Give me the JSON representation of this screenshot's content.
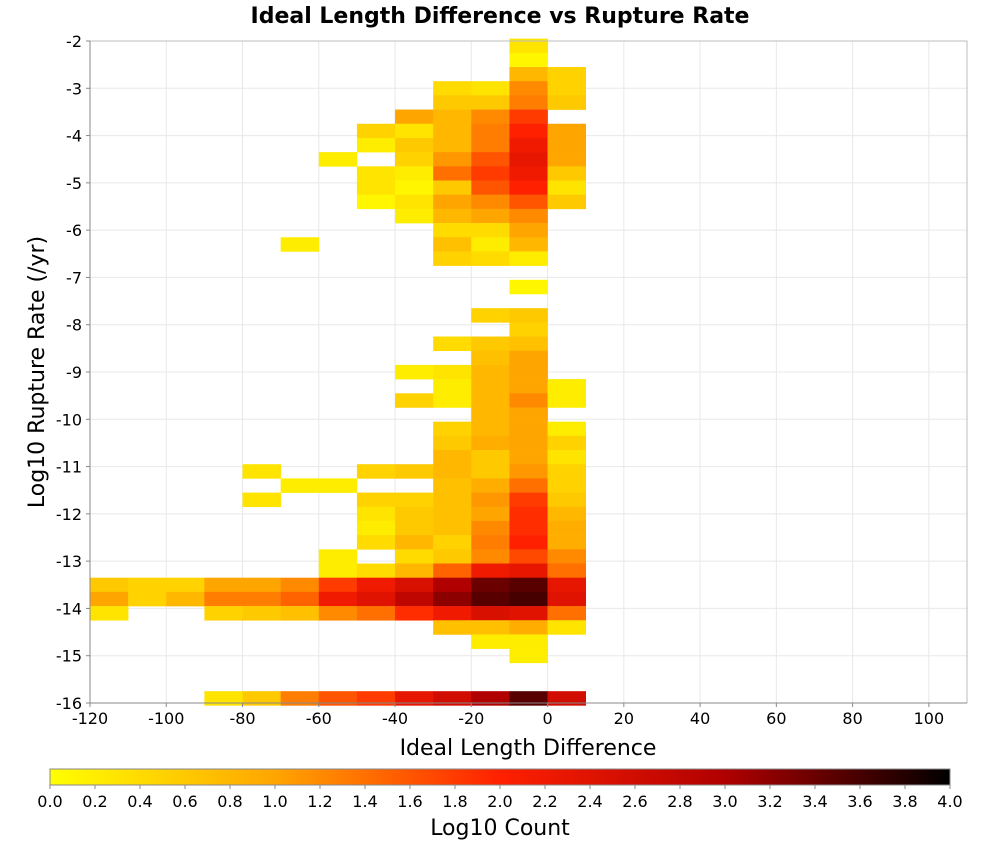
{
  "chart_data": {
    "type": "heatmap",
    "title": "Ideal Length Difference vs Rupture Rate",
    "xlabel": "Ideal Length Difference",
    "ylabel": "Log10 Rupture Rate (/yr)",
    "xlim": [
      -120,
      110
    ],
    "ylim": [
      -16,
      -2
    ],
    "x_ticks": [
      "-120",
      "-100",
      "-80",
      "-60",
      "-40",
      "-20",
      "0",
      "20",
      "40",
      "60",
      "80",
      "100"
    ],
    "y_ticks": [
      "-2",
      "-3",
      "-4",
      "-5",
      "-6",
      "-7",
      "-8",
      "-9",
      "-10",
      "-11",
      "-12",
      "-13",
      "-14",
      "-15",
      "-16"
    ],
    "x_bin_width": 10,
    "y_bin_height": 0.3,
    "grid": true,
    "colorbar": {
      "label": "Log10 Count",
      "range": [
        0.0,
        4.0
      ],
      "ticks": [
        "0.0",
        "0.2",
        "0.4",
        "0.6",
        "0.8",
        "1.0",
        "1.2",
        "1.4",
        "1.6",
        "1.8",
        "2.0",
        "2.2",
        "2.4",
        "2.6",
        "2.8",
        "3.0",
        "3.2",
        "3.4",
        "3.6",
        "3.8",
        "4.0"
      ],
      "colors": [
        "#ffff00",
        "#ffa500",
        "#ff2000",
        "#b00000",
        "#000000"
      ]
    },
    "cells": [
      [
        -10,
        -2.1,
        0.3
      ],
      [
        -10,
        -2.4,
        0.1
      ],
      [
        -10,
        -2.7,
        0.8
      ],
      [
        0,
        -2.7,
        0.5
      ],
      [
        -30,
        -3.0,
        0.4
      ],
      [
        -20,
        -3.0,
        0.3
      ],
      [
        -10,
        -3.0,
        1.2
      ],
      [
        0,
        -3.0,
        0.5
      ],
      [
        -30,
        -3.3,
        0.6
      ],
      [
        -20,
        -3.3,
        0.6
      ],
      [
        -10,
        -3.3,
        1.3
      ],
      [
        0,
        -3.3,
        0.6
      ],
      [
        -40,
        -3.6,
        1.0
      ],
      [
        -30,
        -3.6,
        0.8
      ],
      [
        -20,
        -3.6,
        1.2
      ],
      [
        -10,
        -3.6,
        1.8
      ],
      [
        -50,
        -3.9,
        0.5
      ],
      [
        -40,
        -3.9,
        0.3
      ],
      [
        -30,
        -3.9,
        0.8
      ],
      [
        -20,
        -3.9,
        1.3
      ],
      [
        -10,
        -3.9,
        2.0
      ],
      [
        0,
        -3.9,
        1.0
      ],
      [
        -50,
        -4.2,
        0.2
      ],
      [
        -40,
        -4.2,
        0.6
      ],
      [
        -30,
        -4.2,
        0.8
      ],
      [
        -20,
        -4.2,
        1.3
      ],
      [
        -10,
        -4.2,
        2.2
      ],
      [
        0,
        -4.2,
        1.0
      ],
      [
        -60,
        -4.5,
        0.2
      ],
      [
        -40,
        -4.5,
        0.5
      ],
      [
        -30,
        -4.5,
        1.1
      ],
      [
        -20,
        -4.5,
        1.6
      ],
      [
        -10,
        -4.5,
        2.3
      ],
      [
        0,
        -4.5,
        1.0
      ],
      [
        -50,
        -4.8,
        0.3
      ],
      [
        -40,
        -4.8,
        0.2
      ],
      [
        -30,
        -4.8,
        1.4
      ],
      [
        -20,
        -4.8,
        1.8
      ],
      [
        -10,
        -4.8,
        2.2
      ],
      [
        0,
        -4.8,
        0.6
      ],
      [
        -50,
        -5.1,
        0.3
      ],
      [
        -40,
        -5.1,
        0.1
      ],
      [
        -30,
        -5.1,
        0.6
      ],
      [
        -20,
        -5.1,
        1.6
      ],
      [
        -10,
        -5.1,
        2.0
      ],
      [
        0,
        -5.1,
        0.3
      ],
      [
        -50,
        -5.4,
        0.1
      ],
      [
        -40,
        -5.4,
        0.3
      ],
      [
        -30,
        -5.4,
        1.0
      ],
      [
        -20,
        -5.4,
        1.2
      ],
      [
        -10,
        -5.4,
        1.6
      ],
      [
        0,
        -5.4,
        0.6
      ],
      [
        -40,
        -5.7,
        0.2
      ],
      [
        -30,
        -5.7,
        0.8
      ],
      [
        -20,
        -5.7,
        1.0
      ],
      [
        -10,
        -5.7,
        1.2
      ],
      [
        -30,
        -6.0,
        0.4
      ],
      [
        -20,
        -6.0,
        0.4
      ],
      [
        -10,
        -6.0,
        1.0
      ],
      [
        -70,
        -6.3,
        0.2
      ],
      [
        -30,
        -6.3,
        0.7
      ],
      [
        -20,
        -6.3,
        0.2
      ],
      [
        -10,
        -6.3,
        0.8
      ],
      [
        -30,
        -6.6,
        0.5
      ],
      [
        -20,
        -6.6,
        0.4
      ],
      [
        -10,
        -6.6,
        0.2
      ],
      [
        -10,
        -7.2,
        0.1
      ],
      [
        -20,
        -7.8,
        0.5
      ],
      [
        -10,
        -7.8,
        0.6
      ],
      [
        -10,
        -8.1,
        0.5
      ],
      [
        -30,
        -8.4,
        0.4
      ],
      [
        -20,
        -8.4,
        0.6
      ],
      [
        -10,
        -8.4,
        0.7
      ],
      [
        -20,
        -8.7,
        0.7
      ],
      [
        -10,
        -8.7,
        1.0
      ],
      [
        -40,
        -9.0,
        0.2
      ],
      [
        -30,
        -9.0,
        0.3
      ],
      [
        -20,
        -9.0,
        0.8
      ],
      [
        -10,
        -9.0,
        1.0
      ],
      [
        -30,
        -9.3,
        0.2
      ],
      [
        -20,
        -9.3,
        0.8
      ],
      [
        -10,
        -9.3,
        1.0
      ],
      [
        0,
        -9.3,
        0.2
      ],
      [
        -40,
        -9.6,
        0.5
      ],
      [
        -30,
        -9.6,
        0.2
      ],
      [
        -20,
        -9.6,
        0.8
      ],
      [
        -10,
        -9.6,
        1.2
      ],
      [
        0,
        -9.6,
        0.2
      ],
      [
        -20,
        -9.9,
        0.8
      ],
      [
        -10,
        -9.9,
        1.0
      ],
      [
        -30,
        -10.2,
        0.5
      ],
      [
        -20,
        -10.2,
        0.8
      ],
      [
        -10,
        -10.2,
        1.0
      ],
      [
        0,
        -10.2,
        0.2
      ],
      [
        -30,
        -10.5,
        0.6
      ],
      [
        -20,
        -10.5,
        0.9
      ],
      [
        -10,
        -10.5,
        1.0
      ],
      [
        0,
        -10.5,
        0.5
      ],
      [
        -30,
        -10.8,
        0.8
      ],
      [
        -20,
        -10.8,
        0.6
      ],
      [
        -10,
        -10.8,
        1.0
      ],
      [
        0,
        -10.8,
        0.3
      ],
      [
        -80,
        -11.1,
        0.3
      ],
      [
        -50,
        -11.1,
        0.5
      ],
      [
        -40,
        -11.1,
        0.6
      ],
      [
        -30,
        -11.1,
        0.8
      ],
      [
        -20,
        -11.1,
        0.6
      ],
      [
        -10,
        -11.1,
        1.1
      ],
      [
        0,
        -11.1,
        0.5
      ],
      [
        -70,
        -11.4,
        0.2
      ],
      [
        -60,
        -11.4,
        0.2
      ],
      [
        -30,
        -11.4,
        0.7
      ],
      [
        -20,
        -11.4,
        0.9
      ],
      [
        -10,
        -11.4,
        1.4
      ],
      [
        0,
        -11.4,
        0.5
      ],
      [
        -80,
        -11.7,
        0.3
      ],
      [
        -50,
        -11.7,
        0.5
      ],
      [
        -40,
        -11.7,
        0.5
      ],
      [
        -30,
        -11.7,
        0.7
      ],
      [
        -20,
        -11.7,
        1.1
      ],
      [
        -10,
        -11.7,
        1.8
      ],
      [
        0,
        -11.7,
        0.6
      ],
      [
        -50,
        -12.0,
        0.3
      ],
      [
        -40,
        -12.0,
        0.6
      ],
      [
        -30,
        -12.0,
        0.7
      ],
      [
        -20,
        -12.0,
        1.0
      ],
      [
        -10,
        -12.0,
        1.9
      ],
      [
        0,
        -12.0,
        0.8
      ],
      [
        -50,
        -12.3,
        0.2
      ],
      [
        -40,
        -12.3,
        0.6
      ],
      [
        -30,
        -12.3,
        0.7
      ],
      [
        -20,
        -12.3,
        1.2
      ],
      [
        -10,
        -12.3,
        1.9
      ],
      [
        0,
        -12.3,
        0.9
      ],
      [
        -50,
        -12.6,
        0.4
      ],
      [
        -40,
        -12.6,
        0.8
      ],
      [
        -30,
        -12.6,
        0.5
      ],
      [
        -20,
        -12.6,
        1.3
      ],
      [
        -10,
        -12.6,
        2.0
      ],
      [
        0,
        -12.6,
        0.9
      ],
      [
        -60,
        -12.9,
        0.2
      ],
      [
        -40,
        -12.9,
        0.4
      ],
      [
        -30,
        -12.9,
        0.6
      ],
      [
        -20,
        -12.9,
        1.2
      ],
      [
        -10,
        -12.9,
        1.7
      ],
      [
        0,
        -12.9,
        1.2
      ],
      [
        -60,
        -13.2,
        0.2
      ],
      [
        -50,
        -13.2,
        0.4
      ],
      [
        -40,
        -13.2,
        0.8
      ],
      [
        -30,
        -13.2,
        1.5
      ],
      [
        -20,
        -13.2,
        2.2
      ],
      [
        -10,
        -13.2,
        2.3
      ],
      [
        0,
        -13.2,
        1.4
      ],
      [
        -120,
        -13.5,
        0.6
      ],
      [
        -110,
        -13.5,
        0.5
      ],
      [
        -100,
        -13.5,
        0.5
      ],
      [
        -90,
        -13.5,
        1.0
      ],
      [
        -80,
        -13.5,
        1.0
      ],
      [
        -70,
        -13.5,
        1.2
      ],
      [
        -60,
        -13.5,
        1.8
      ],
      [
        -50,
        -13.5,
        2.2
      ],
      [
        -40,
        -13.5,
        2.5
      ],
      [
        -30,
        -13.5,
        3.0
      ],
      [
        -20,
        -13.5,
        3.4
      ],
      [
        -10,
        -13.5,
        3.5
      ],
      [
        0,
        -13.5,
        2.3
      ],
      [
        -120,
        -13.8,
        1.0
      ],
      [
        -110,
        -13.8,
        0.5
      ],
      [
        -100,
        -13.8,
        0.8
      ],
      [
        -90,
        -13.8,
        1.3
      ],
      [
        -80,
        -13.8,
        1.3
      ],
      [
        -70,
        -13.8,
        1.5
      ],
      [
        -60,
        -13.8,
        2.2
      ],
      [
        -50,
        -13.8,
        2.4
      ],
      [
        -40,
        -13.8,
        2.8
      ],
      [
        -30,
        -13.8,
        3.2
      ],
      [
        -20,
        -13.8,
        3.5
      ],
      [
        -10,
        -13.8,
        3.6
      ],
      [
        0,
        -13.8,
        2.4
      ],
      [
        -120,
        -14.1,
        0.3
      ],
      [
        -90,
        -14.1,
        0.5
      ],
      [
        -80,
        -14.1,
        0.6
      ],
      [
        -70,
        -14.1,
        0.7
      ],
      [
        -60,
        -14.1,
        1.2
      ],
      [
        -50,
        -14.1,
        1.4
      ],
      [
        -40,
        -14.1,
        1.9
      ],
      [
        -30,
        -14.1,
        2.2
      ],
      [
        -20,
        -14.1,
        2.5
      ],
      [
        -10,
        -14.1,
        2.4
      ],
      [
        0,
        -14.1,
        1.4
      ],
      [
        -30,
        -14.4,
        0.7
      ],
      [
        -20,
        -14.4,
        0.7
      ],
      [
        -10,
        -14.4,
        0.9
      ],
      [
        0,
        -14.4,
        0.3
      ],
      [
        -20,
        -14.7,
        0.2
      ],
      [
        -10,
        -14.7,
        0.2
      ],
      [
        -10,
        -15.0,
        0.2
      ],
      [
        -90,
        -15.9,
        0.3
      ],
      [
        -80,
        -15.9,
        0.6
      ],
      [
        -70,
        -15.9,
        1.3
      ],
      [
        -60,
        -15.9,
        1.6
      ],
      [
        -50,
        -15.9,
        1.8
      ],
      [
        -40,
        -15.9,
        2.3
      ],
      [
        -30,
        -15.9,
        2.6
      ],
      [
        -20,
        -15.9,
        3.0
      ],
      [
        -10,
        -15.9,
        3.5
      ],
      [
        0,
        -15.9,
        2.6
      ]
    ]
  }
}
